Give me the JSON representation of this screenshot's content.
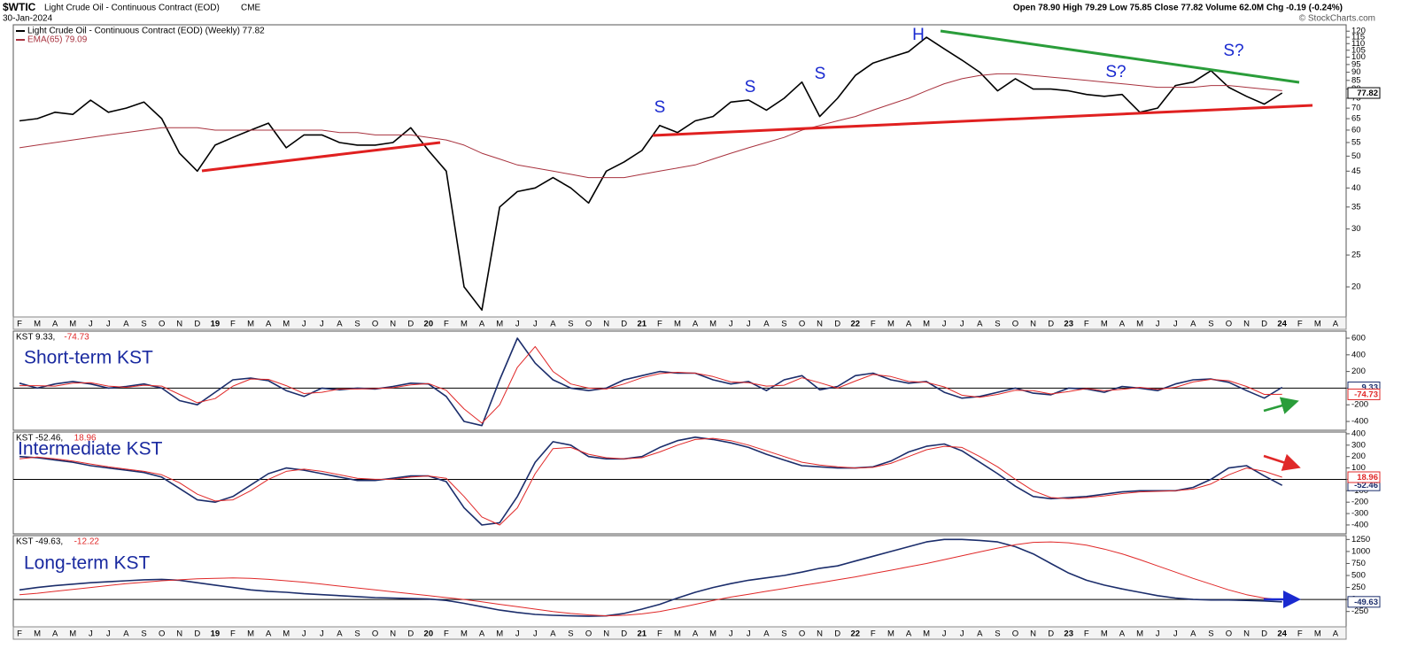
{
  "header": {
    "symbol": "$WTIC",
    "title": "Light Crude Oil - Continuous Contract (EOD)",
    "exchange": "CME",
    "date": "30-Jan-2024",
    "quote": "Open 78.90 High 79.29 Low 75.85 Close 77.82 Volume 62.0M Chg -0.19 (-0.24%)",
    "credit": "© StockCharts.com"
  },
  "time_axis": {
    "labels": [
      "F",
      "M",
      "A",
      "M",
      "J",
      "J",
      "A",
      "S",
      "O",
      "N",
      "D",
      "19",
      "F",
      "M",
      "A",
      "M",
      "J",
      "J",
      "A",
      "S",
      "O",
      "N",
      "D",
      "20",
      "F",
      "M",
      "A",
      "M",
      "J",
      "J",
      "A",
      "S",
      "O",
      "N",
      "D",
      "21",
      "F",
      "M",
      "A",
      "M",
      "J",
      "J",
      "A",
      "S",
      "O",
      "N",
      "D",
      "22",
      "F",
      "M",
      "A",
      "M",
      "J",
      "J",
      "A",
      "S",
      "O",
      "N",
      "D",
      "23",
      "F",
      "M",
      "A",
      "M",
      "J",
      "J",
      "A",
      "S",
      "O",
      "N",
      "D",
      "24",
      "F",
      "M",
      "A"
    ]
  },
  "chart_data": [
    {
      "type": "line",
      "log_scale": true,
      "ylim": [
        16.2,
        125.5
      ],
      "yticks": [
        20,
        25,
        30,
        35,
        40,
        45,
        50,
        55,
        60,
        65,
        70,
        75,
        80,
        85,
        90,
        95,
        100,
        105,
        110,
        115,
        120
      ],
      "x": [
        "2018-02",
        "2018-03",
        "2018-04",
        "2018-05",
        "2018-06",
        "2018-07",
        "2018-08",
        "2018-09",
        "2018-10",
        "2018-11",
        "2018-12",
        "2019-01",
        "2019-02",
        "2019-03",
        "2019-04",
        "2019-05",
        "2019-06",
        "2019-07",
        "2019-08",
        "2019-09",
        "2019-10",
        "2019-11",
        "2019-12",
        "2020-01",
        "2020-02",
        "2020-03",
        "2020-04",
        "2020-05",
        "2020-06",
        "2020-07",
        "2020-08",
        "2020-09",
        "2020-10",
        "2020-11",
        "2020-12",
        "2021-01",
        "2021-02",
        "2021-03",
        "2021-04",
        "2021-05",
        "2021-06",
        "2021-07",
        "2021-08",
        "2021-09",
        "2021-10",
        "2021-11",
        "2021-12",
        "2022-01",
        "2022-02",
        "2022-03",
        "2022-04",
        "2022-05",
        "2022-06",
        "2022-07",
        "2022-08",
        "2022-09",
        "2022-10",
        "2022-11",
        "2022-12",
        "2023-01",
        "2023-02",
        "2023-03",
        "2023-04",
        "2023-05",
        "2023-06",
        "2023-07",
        "2023-08",
        "2023-09",
        "2023-10",
        "2023-11",
        "2023-12",
        "2024-01"
      ],
      "series": [
        {
          "name": "Light Crude Oil - Continuous Contract (EOD) (Weekly) 77.82",
          "color": "#000000",
          "width": 1.6,
          "values": [
            64,
            65,
            68,
            67,
            74,
            68,
            70,
            73,
            65,
            51,
            45,
            54,
            57,
            60,
            63,
            53,
            58,
            58,
            55,
            54,
            54,
            55,
            61,
            52,
            45,
            20,
            17,
            35,
            39,
            40,
            43,
            40,
            36,
            45,
            48,
            52,
            62,
            59,
            64,
            66,
            73,
            74,
            69,
            75,
            84,
            66,
            75,
            88,
            96,
            100,
            104,
            115,
            106,
            98,
            90,
            79,
            86,
            80,
            80,
            79,
            77,
            76,
            77,
            68,
            70,
            82,
            84,
            91,
            81,
            76,
            72,
            77.82
          ]
        },
        {
          "name": "EMA(65) 79.09",
          "color": "#a8323e",
          "width": 1,
          "values": [
            53,
            54,
            55,
            56,
            57,
            58,
            59,
            60,
            61,
            61,
            61,
            60,
            60,
            60,
            60,
            60,
            60,
            60,
            59,
            59,
            58,
            58,
            58,
            57,
            56,
            54,
            51,
            49,
            47,
            46,
            45,
            44,
            43,
            43,
            43,
            44,
            45,
            46,
            47,
            49,
            51,
            53,
            55,
            57,
            60,
            62,
            64,
            66,
            69,
            72,
            75,
            79,
            83,
            86,
            88,
            89,
            89,
            88,
            87,
            86,
            85,
            84,
            83,
            82,
            81,
            81,
            81,
            82,
            82,
            81,
            80,
            79.09
          ]
        }
      ],
      "last_labels": [
        "77.82"
      ],
      "annotations": [
        "S",
        "S",
        "S",
        "H",
        "S?",
        "S?"
      ]
    },
    {
      "type": "line",
      "panel_title": "Short-term KST",
      "legend": [
        "KST 9.33,",
        "-74.73"
      ],
      "ylim": [
        -506,
        685
      ],
      "yticks": [
        600,
        400,
        200,
        0,
        -200,
        -400
      ],
      "series": [
        {
          "color": "#1b2d6b",
          "width": 1.6,
          "values": [
            60,
            0,
            50,
            80,
            50,
            0,
            20,
            50,
            0,
            -150,
            -200,
            -50,
            100,
            120,
            90,
            -30,
            -100,
            0,
            -20,
            0,
            -10,
            20,
            60,
            50,
            -100,
            -400,
            -450,
            100,
            600,
            300,
            100,
            0,
            -30,
            0,
            100,
            150,
            200,
            180,
            180,
            100,
            50,
            80,
            -30,
            100,
            150,
            -20,
            20,
            150,
            180,
            100,
            60,
            80,
            -50,
            -120,
            -100,
            -50,
            0,
            -60,
            -80,
            0,
            -10,
            -50,
            20,
            0,
            -30,
            50,
            100,
            110,
            70,
            -30,
            -120,
            9.33
          ]
        },
        {
          "color": "#e02828",
          "width": 1,
          "values": [
            30,
            30,
            25,
            60,
            65,
            25,
            10,
            35,
            25,
            -75,
            -175,
            -125,
            25,
            110,
            105,
            30,
            -65,
            -50,
            -10,
            -10,
            -5,
            5,
            40,
            55,
            -25,
            -250,
            -420,
            -200,
            250,
            500,
            200,
            50,
            0,
            -10,
            50,
            125,
            175,
            190,
            180,
            140,
            75,
            65,
            25,
            35,
            125,
            65,
            0,
            85,
            165,
            140,
            80,
            70,
            15,
            -85,
            -110,
            -75,
            -25,
            -30,
            -70,
            -40,
            -5,
            -30,
            -15,
            10,
            -15,
            10,
            75,
            105,
            90,
            20,
            -75,
            -74.73
          ]
        }
      ],
      "last_labels": [
        "9.33",
        "-74.73"
      ]
    },
    {
      "type": "line",
      "panel_title": "Intermediate KST",
      "legend": [
        "KST -52.46,",
        "18.96"
      ],
      "ylim": [
        -478,
        415
      ],
      "yticks": [
        400,
        300,
        200,
        100,
        0,
        -100,
        -200,
        -300,
        -400
      ],
      "series": [
        {
          "color": "#1b2d6b",
          "width": 1.6,
          "values": [
            200,
            190,
            170,
            150,
            120,
            100,
            80,
            60,
            20,
            -80,
            -180,
            -200,
            -150,
            -50,
            50,
            100,
            80,
            50,
            20,
            -10,
            -10,
            10,
            30,
            30,
            -20,
            -250,
            -400,
            -380,
            -150,
            150,
            330,
            300,
            200,
            180,
            180,
            200,
            280,
            340,
            370,
            350,
            320,
            280,
            220,
            170,
            120,
            110,
            100,
            100,
            110,
            160,
            240,
            290,
            310,
            250,
            150,
            50,
            -60,
            -150,
            -170,
            -160,
            -150,
            -130,
            -110,
            -100,
            -100,
            -100,
            -70,
            0,
            100,
            120,
            30,
            -52.46
          ]
        },
        {
          "color": "#e02828",
          "width": 1,
          "values": [
            180,
            195,
            180,
            160,
            135,
            110,
            90,
            70,
            40,
            -30,
            -130,
            -190,
            -180,
            -100,
            0,
            70,
            90,
            70,
            40,
            10,
            0,
            0,
            20,
            30,
            10,
            -150,
            -330,
            -400,
            -250,
            50,
            270,
            280,
            220,
            190,
            180,
            190,
            240,
            300,
            350,
            360,
            340,
            300,
            250,
            200,
            150,
            125,
            110,
            100,
            105,
            140,
            200,
            260,
            290,
            280,
            200,
            110,
            0,
            -100,
            -160,
            -170,
            -160,
            -145,
            -125,
            -110,
            -105,
            -100,
            -85,
            -40,
            40,
            100,
            70,
            18.96
          ]
        }
      ],
      "last_labels": [
        "-52.46",
        "18.96"
      ]
    },
    {
      "type": "line",
      "panel_title": "Long-term KST",
      "legend": [
        "KST -49.63,",
        "-12.22"
      ],
      "ylim": [
        -569,
        1330
      ],
      "yticks": [
        1250,
        1000,
        750,
        500,
        250,
        0,
        -250
      ],
      "series": [
        {
          "color": "#1b2d6b",
          "width": 1.6,
          "values": [
            200,
            250,
            290,
            320,
            350,
            370,
            390,
            410,
            420,
            400,
            350,
            300,
            250,
            200,
            170,
            150,
            120,
            100,
            80,
            60,
            40,
            30,
            20,
            10,
            -20,
            -80,
            -150,
            -220,
            -270,
            -310,
            -330,
            -340,
            -350,
            -340,
            -290,
            -200,
            -100,
            30,
            150,
            250,
            330,
            400,
            450,
            500,
            570,
            650,
            700,
            800,
            900,
            1000,
            1100,
            1200,
            1250,
            1250,
            1230,
            1200,
            1100,
            950,
            750,
            550,
            400,
            300,
            220,
            150,
            80,
            30,
            0,
            -10,
            -10,
            -20,
            -30,
            -49.63
          ]
        },
        {
          "color": "#e02828",
          "width": 1,
          "values": [
            100,
            130,
            170,
            210,
            250,
            290,
            330,
            360,
            390,
            410,
            430,
            440,
            450,
            440,
            420,
            390,
            360,
            320,
            280,
            240,
            200,
            160,
            120,
            80,
            40,
            0,
            -50,
            -100,
            -150,
            -200,
            -250,
            -290,
            -320,
            -340,
            -330,
            -300,
            -250,
            -180,
            -100,
            -20,
            50,
            110,
            170,
            230,
            290,
            350,
            410,
            470,
            540,
            610,
            680,
            750,
            830,
            910,
            990,
            1070,
            1140,
            1190,
            1200,
            1180,
            1130,
            1050,
            950,
            830,
            700,
            570,
            440,
            320,
            200,
            100,
            30,
            -12.22
          ]
        }
      ],
      "last_labels": [
        "-49.63"
      ]
    }
  ]
}
